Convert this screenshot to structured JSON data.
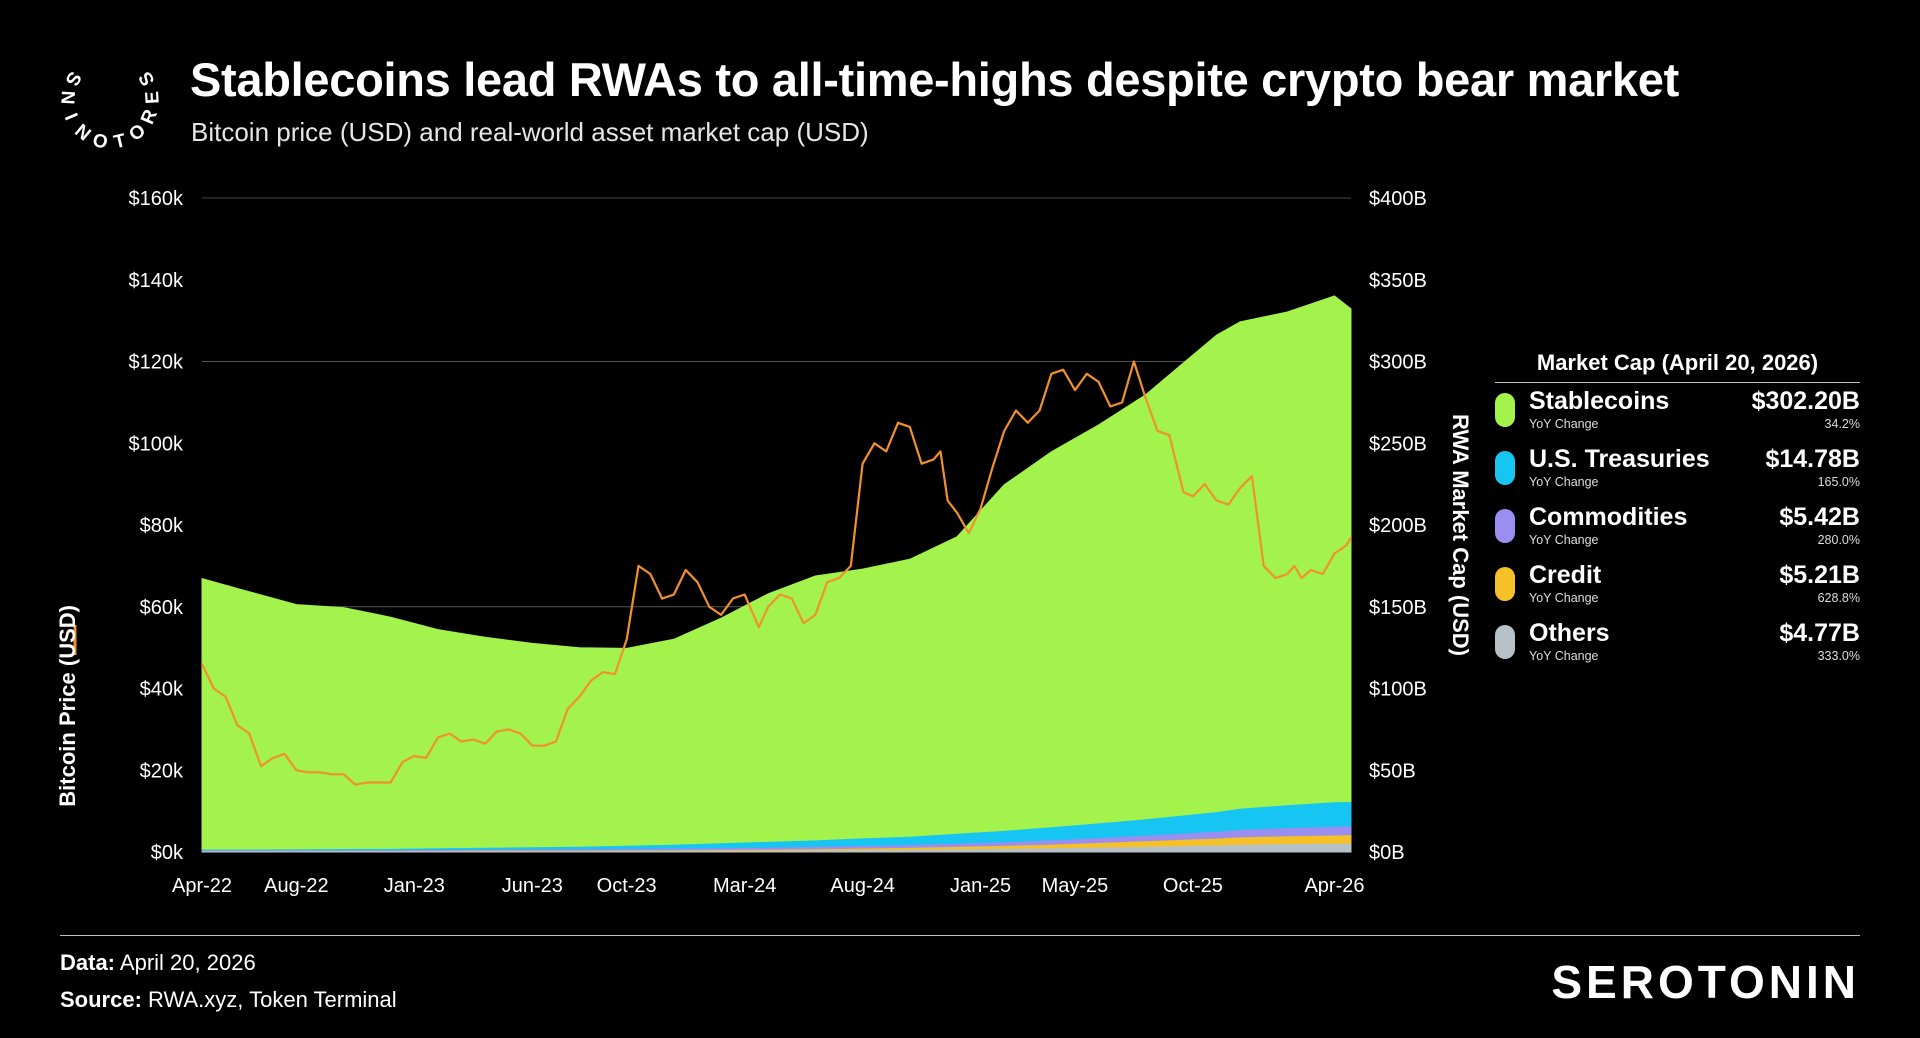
{
  "header": {
    "title": "Stablecoins lead RWAs to all-time-highs despite crypto bear market",
    "subtitle": "Bitcoin price (USD) and real-world asset market cap (USD)"
  },
  "logo": {
    "ring_text": "SEROTONINS",
    "wordmark": "SEROTONIN"
  },
  "footer": {
    "data_label": "Data:",
    "data_value": "April 20, 2026",
    "source_label": "Source:",
    "source_value": "RWA.xyz, Token Terminal"
  },
  "legend": {
    "title": "Market Cap (April 20, 2026)",
    "items": [
      {
        "name": "Stablecoins",
        "sub": "YoY Change",
        "value": "$302.20B",
        "change": "34.2%",
        "color": "#a4f24c"
      },
      {
        "name": "U.S. Treasuries",
        "sub": "YoY Change",
        "value": "$14.78B",
        "change": "165.0%",
        "color": "#16c5f2"
      },
      {
        "name": "Commodities",
        "sub": "YoY Change",
        "value": "$5.42B",
        "change": "280.0%",
        "color": "#9a8ef0"
      },
      {
        "name": "Credit",
        "sub": "YoY Change",
        "value": "$5.21B",
        "change": "628.8%",
        "color": "#f5c127"
      },
      {
        "name": "Others",
        "sub": "YoY Change",
        "value": "$4.77B",
        "change": "333.0%",
        "color": "#b6c2c8"
      }
    ]
  },
  "chart_data": {
    "type": "area",
    "xlabel": "",
    "ylabel_left": "Bitcoin Price (USD)",
    "ylabel_right": "RWA Market Cap (USD)",
    "left_axis": {
      "range": [
        0,
        160000
      ],
      "ticks": [
        "$0k",
        "$20k",
        "$40k",
        "$60k",
        "$80k",
        "$100k",
        "$120k",
        "$140k",
        "$160k"
      ]
    },
    "right_axis": {
      "range": [
        0,
        400
      ],
      "ticks": [
        "$0B",
        "$50B",
        "$100B",
        "$150B",
        "$200B",
        "$250B",
        "$300B",
        "$350B",
        "$400B"
      ]
    },
    "x_tick_labels": [
      "Apr-22",
      "Aug-22",
      "Jan-23",
      "Jun-23",
      "Oct-23",
      "Mar-24",
      "Aug-24",
      "Jan-25",
      "May-25",
      "Oct-25",
      "Apr-26"
    ],
    "x_tick_months": [
      0,
      4,
      9,
      14,
      18,
      23,
      28,
      33,
      37,
      42,
      48
    ],
    "month_range": [
      0,
      48.7
    ],
    "grid_lines_right_B": [
      150,
      300
    ],
    "btc_color": "#f0912e",
    "btc_price": {
      "month": [
        0,
        0.5,
        1,
        1.5,
        2,
        2.5,
        3,
        3.5,
        4,
        4.5,
        5,
        5.5,
        6,
        6.5,
        7,
        7.5,
        8,
        8.5,
        9,
        9.5,
        10,
        10.5,
        11,
        11.5,
        12,
        12.5,
        13,
        13.5,
        14,
        14.5,
        15,
        15.5,
        16,
        16.5,
        17,
        17.5,
        18,
        18.5,
        19,
        19.5,
        20,
        20.5,
        21,
        21.5,
        22,
        22.5,
        23,
        23.3,
        23.6,
        24,
        24.5,
        25,
        25.5,
        26,
        26.5,
        27,
        27.5,
        28,
        28.5,
        29,
        29.5,
        30,
        30.5,
        31,
        31.3,
        31.6,
        32,
        32.5,
        33,
        33.5,
        34,
        34.5,
        35,
        35.5,
        36,
        36.5,
        37,
        37.5,
        38,
        38.5,
        39,
        39.5,
        40,
        40.5,
        41,
        41.3,
        41.6,
        42,
        42.5,
        43,
        43.5,
        44,
        44.5,
        45,
        45.5,
        46,
        46.3,
        46.6,
        47,
        47.5,
        48,
        48.5,
        48.7
      ],
      "usd": [
        46000,
        40000,
        38000,
        31000,
        29000,
        21000,
        23000,
        24000,
        20000,
        19500,
        19500,
        19000,
        19000,
        16500,
        17000,
        17000,
        17000,
        22000,
        23500,
        23000,
        28000,
        29000,
        27000,
        27500,
        26500,
        29500,
        30000,
        29000,
        26000,
        26000,
        27000,
        35000,
        38000,
        42000,
        44000,
        43500,
        52000,
        70000,
        68000,
        62000,
        63000,
        69000,
        66000,
        60000,
        58000,
        62000,
        63000,
        59000,
        55000,
        60000,
        63000,
        62000,
        56000,
        58000,
        66000,
        67000,
        70000,
        95000,
        100000,
        98000,
        105000,
        104000,
        95000,
        96000,
        98000,
        86000,
        83000,
        78000,
        84000,
        94000,
        103000,
        108000,
        105000,
        108000,
        117000,
        118000,
        113000,
        117000,
        115000,
        109000,
        110000,
        120000,
        111000,
        103000,
        102000,
        95000,
        88000,
        87000,
        90000,
        86000,
        85000,
        89000,
        92000,
        70000,
        67000,
        68000,
        70000,
        67000,
        69000,
        68000,
        73000,
        75000,
        77000
      ],
      "note": "monthly-estimated values read from the chart"
    },
    "rwa_series": {
      "month": [
        0,
        2,
        4,
        6,
        8,
        10,
        12,
        14,
        16,
        18,
        20,
        22,
        24,
        26,
        28,
        30,
        32,
        34,
        36,
        38,
        40,
        41.5,
        43,
        44,
        46,
        48,
        48.7
      ],
      "Stablecoins": [
        166,
        158,
        150,
        148,
        142,
        134,
        129,
        125,
        122,
        121,
        126,
        138,
        152,
        162,
        165,
        170,
        182,
        212,
        230,
        244,
        260,
        276,
        292,
        298,
        302,
        310,
        302
      ],
      "U.S. Treasuries": [
        0.5,
        0.5,
        0.6,
        0.7,
        0.8,
        1,
        1.2,
        1.4,
        1.6,
        2,
        2.4,
        3,
        3.6,
        4,
        4.6,
        5,
        6,
        7,
        8,
        9,
        10,
        11,
        12,
        13,
        14,
        15,
        14.8
      ],
      "Commodities": [
        0.5,
        0.5,
        0.5,
        0.6,
        0.6,
        0.7,
        0.7,
        0.8,
        0.8,
        0.9,
        1,
        1.1,
        1.2,
        1.4,
        1.6,
        1.8,
        2,
        2.2,
        2.6,
        3,
        3.4,
        3.8,
        4.2,
        4.6,
        5,
        5.3,
        5.4
      ],
      "Credit": [
        0.1,
        0.1,
        0.1,
        0.1,
        0.1,
        0.2,
        0.2,
        0.2,
        0.3,
        0.3,
        0.4,
        0.5,
        0.6,
        0.8,
        1,
        1.2,
        1.5,
        1.8,
        2.2,
        2.8,
        3.4,
        3.8,
        4.2,
        4.5,
        4.8,
        5.1,
        5.2
      ],
      "Others": [
        0.1,
        0.1,
        0.1,
        0.1,
        0.1,
        0.1,
        0.2,
        0.2,
        0.2,
        0.3,
        0.3,
        0.4,
        0.5,
        0.6,
        0.8,
        1,
        1.3,
        1.6,
        2,
        2.4,
        2.9,
        3.3,
        3.7,
        4.1,
        4.5,
        4.7,
        4.8
      ]
    }
  }
}
